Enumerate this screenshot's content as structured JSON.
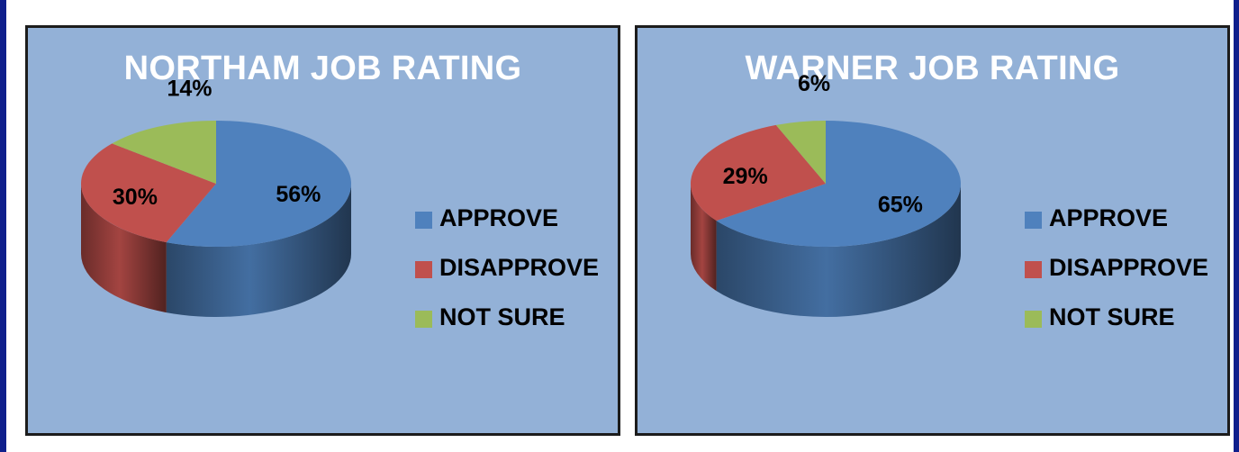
{
  "chart_data": [
    {
      "type": "pie",
      "title": "NORTHAM JOB RATING",
      "categories": [
        "APPROVE",
        "DISAPPROVE",
        "NOT SURE"
      ],
      "values": [
        56,
        30,
        14
      ],
      "labels": [
        "56%",
        "30%",
        "14%"
      ],
      "colors": [
        "#4f81bd",
        "#c0504d",
        "#9bbb59"
      ],
      "legend_position": "right",
      "style": "3d"
    },
    {
      "type": "pie",
      "title": "WARNER JOB RATING",
      "categories": [
        "APPROVE",
        "DISAPPROVE",
        "NOT SURE"
      ],
      "values": [
        65,
        29,
        6
      ],
      "labels": [
        "65%",
        "29%",
        "6%"
      ],
      "colors": [
        "#4f81bd",
        "#c0504d",
        "#9bbb59"
      ],
      "legend_position": "right",
      "style": "3d"
    }
  ],
  "colors": {
    "panel_background": "#93b1d7",
    "title_text": "#ffffff",
    "frame_edge": "#0f1f8c"
  }
}
